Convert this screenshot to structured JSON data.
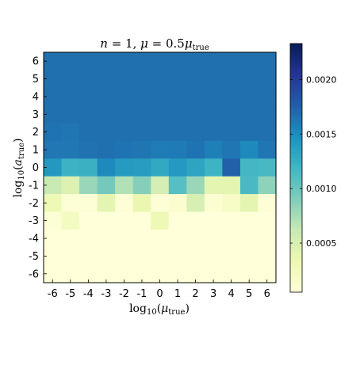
{
  "chart_data": {
    "type": "heatmap",
    "title": "n = 1,  μ = 0.5μ_true",
    "title_parts": {
      "lhs": "n",
      "eq1": " = 1,  ",
      "mu": "μ",
      "eq2": " = 0.5",
      "mu2": "μ",
      "sub": "true"
    },
    "xlabel": {
      "prefix": "log",
      "base": "10",
      "open": "(",
      "var": "μ",
      "sub": "true",
      "close": ")"
    },
    "ylabel": {
      "prefix": "log",
      "base": "10",
      "open": "(",
      "var": "a",
      "sub": "true",
      "close": ")"
    },
    "x_ticks": [
      -6,
      -5,
      -4,
      -3,
      -2,
      -1,
      0,
      1,
      2,
      3,
      4,
      5,
      6
    ],
    "y_ticks": [
      6,
      5,
      4,
      3,
      2,
      1,
      0,
      -1,
      -2,
      -3,
      -4,
      -5,
      -6
    ],
    "x_tick_labels": [
      "-6",
      "-5",
      "-4",
      "-3",
      "-2",
      "-1",
      "0",
      "1",
      "2",
      "3",
      "4",
      "5",
      "6"
    ],
    "y_tick_labels": [
      "6",
      "5",
      "4",
      "3",
      "2",
      "1",
      "0",
      "-1",
      "-2",
      "-3",
      "-4",
      "-5",
      "-6"
    ],
    "colorbar": {
      "colormap": "YlGnBu",
      "range": [
        5e-05,
        0.00233
      ],
      "ticks": [
        0.0005,
        0.001,
        0.0015,
        0.002
      ],
      "tick_labels": [
        "0.0005",
        "0.0010",
        "0.0015",
        "0.0020"
      ]
    },
    "rows_y": [
      6,
      5,
      4,
      3,
      2,
      1,
      0,
      -1,
      -2,
      -3,
      -4,
      -5,
      -6
    ],
    "values": [
      [
        0.00166,
        0.00166,
        0.00166,
        0.00166,
        0.00166,
        0.00166,
        0.00166,
        0.00166,
        0.00166,
        0.00166,
        0.00166,
        0.00166,
        0.00166
      ],
      [
        0.00166,
        0.00166,
        0.00166,
        0.00166,
        0.00166,
        0.00166,
        0.00166,
        0.00166,
        0.00166,
        0.00166,
        0.00166,
        0.00166,
        0.00166
      ],
      [
        0.00166,
        0.00166,
        0.00166,
        0.00166,
        0.00166,
        0.00166,
        0.00166,
        0.00166,
        0.00166,
        0.00166,
        0.00166,
        0.00166,
        0.00166
      ],
      [
        0.00166,
        0.00166,
        0.00166,
        0.00166,
        0.00166,
        0.00166,
        0.00166,
        0.00166,
        0.00166,
        0.00166,
        0.00166,
        0.00166,
        0.00166
      ],
      [
        0.00164,
        0.00163,
        0.00166,
        0.00166,
        0.00166,
        0.00166,
        0.00166,
        0.00166,
        0.00166,
        0.00166,
        0.00166,
        0.00166,
        0.00166
      ],
      [
        0.00162,
        0.00162,
        0.00165,
        0.00166,
        0.00164,
        0.00163,
        0.00159,
        0.0016,
        0.00164,
        0.00157,
        0.00163,
        0.00152,
        0.00163
      ],
      [
        0.00142,
        0.00122,
        0.00124,
        0.00152,
        0.0014,
        0.00139,
        0.0013,
        0.00141,
        0.00134,
        0.00121,
        0.00175,
        0.00118,
        0.00116
      ],
      [
        0.0006,
        0.00046,
        0.0008,
        0.00095,
        0.0007,
        0.00088,
        0.00052,
        0.00109,
        0.0008,
        0.0004,
        0.0004,
        0.00115,
        0.00085
      ],
      [
        0.0003,
        8e-05,
        8e-05,
        0.0004,
        8e-05,
        0.00035,
        8e-05,
        0.00012,
        0.0005,
        0.0001,
        0.00018,
        0.0004,
        8e-05
      ],
      [
        8e-05,
        0.00022,
        5e-05,
        5e-05,
        5e-05,
        5e-05,
        0.0003,
        5e-05,
        5e-05,
        5e-05,
        5e-05,
        5e-05,
        5e-05
      ],
      [
        5e-05,
        5e-05,
        5e-05,
        5e-05,
        5e-05,
        5e-05,
        5e-05,
        5e-05,
        5e-05,
        5e-05,
        5e-05,
        5e-05,
        5e-05
      ],
      [
        5e-05,
        5e-05,
        5e-05,
        5e-05,
        5e-05,
        5e-05,
        5e-05,
        5e-05,
        5e-05,
        5e-05,
        5e-05,
        5e-05,
        5e-05
      ],
      [
        5e-05,
        5e-05,
        5e-05,
        5e-05,
        5e-05,
        5e-05,
        5e-05,
        5e-05,
        5e-05,
        5e-05,
        5e-05,
        5e-05,
        5e-05
      ]
    ]
  }
}
